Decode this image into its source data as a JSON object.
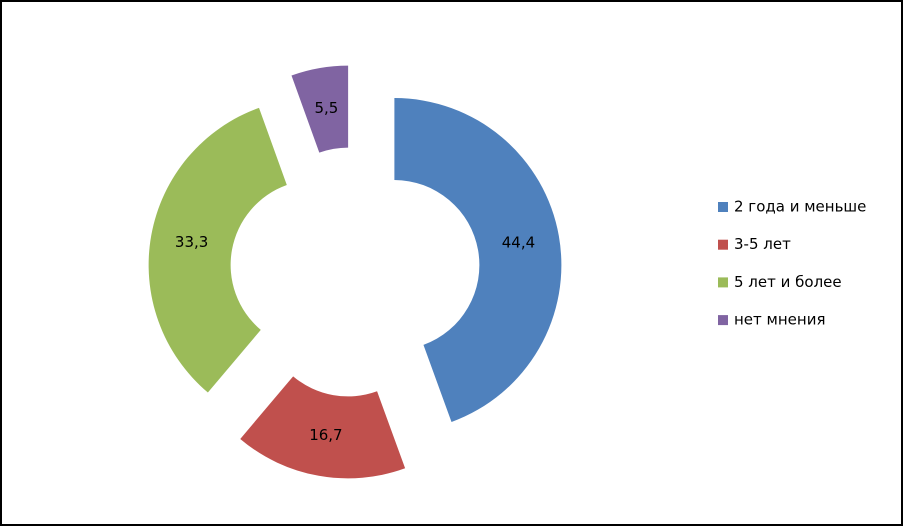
{
  "chart_data": {
    "type": "pie",
    "categories": [
      "2 года и меньше",
      "3-5 лет",
      "5 лет и более",
      "нет мнения"
    ],
    "values": [
      44.4,
      16.7,
      33.3,
      5.5
    ],
    "value_labels": [
      "44,4",
      "16,7",
      "33,3",
      "5,5"
    ],
    "colors": [
      "#4f81bd",
      "#c0504d",
      "#9bbb59",
      "#8064a2"
    ],
    "legend": "right"
  }
}
